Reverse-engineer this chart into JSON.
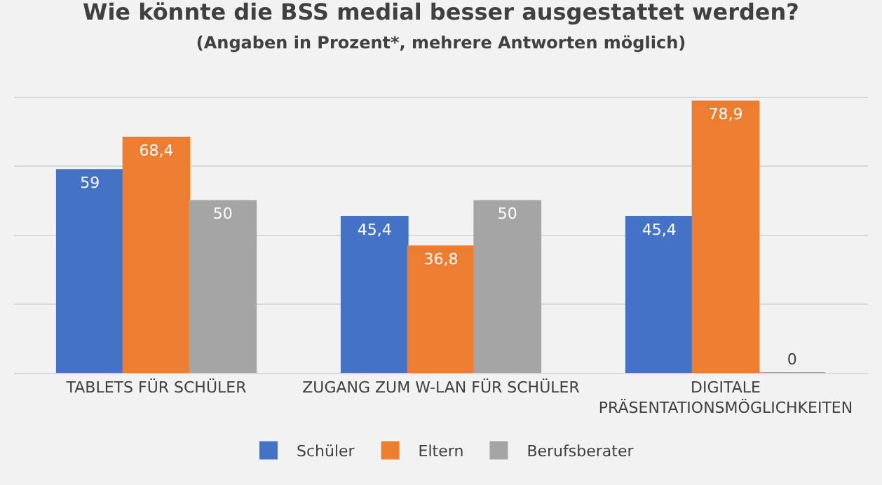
{
  "chart_data": {
    "type": "bar",
    "title": "Wie könnte die BSS medial besser ausgestattet werden?",
    "subtitle": "(Angaben in Prozent*, mehrere Antworten möglich)",
    "categories": [
      "TABLETS FÜR SCHÜLER",
      "ZUGANG ZUM W-LAN FÜR SCHÜLER",
      "DIGITALE\nPRÄSENTATIONSMÖGLICHKEITEN"
    ],
    "series": [
      {
        "name": "Schüler",
        "color": "#4472c4",
        "values": [
          59,
          45.4,
          45.4
        ],
        "value_labels": [
          "59",
          "45,4",
          "45,4"
        ]
      },
      {
        "name": "Eltern",
        "color": "#ed7d31",
        "values": [
          68.4,
          36.8,
          78.9
        ],
        "value_labels": [
          "68,4",
          "36,8",
          "78,9"
        ]
      },
      {
        "name": "Berufsberater",
        "color": "#a5a5a5",
        "values": [
          50,
          50,
          0
        ],
        "value_labels": [
          "50",
          "50",
          "0"
        ]
      }
    ],
    "grid": "y",
    "legend": "bottom",
    "tick_labels": "x"
  }
}
